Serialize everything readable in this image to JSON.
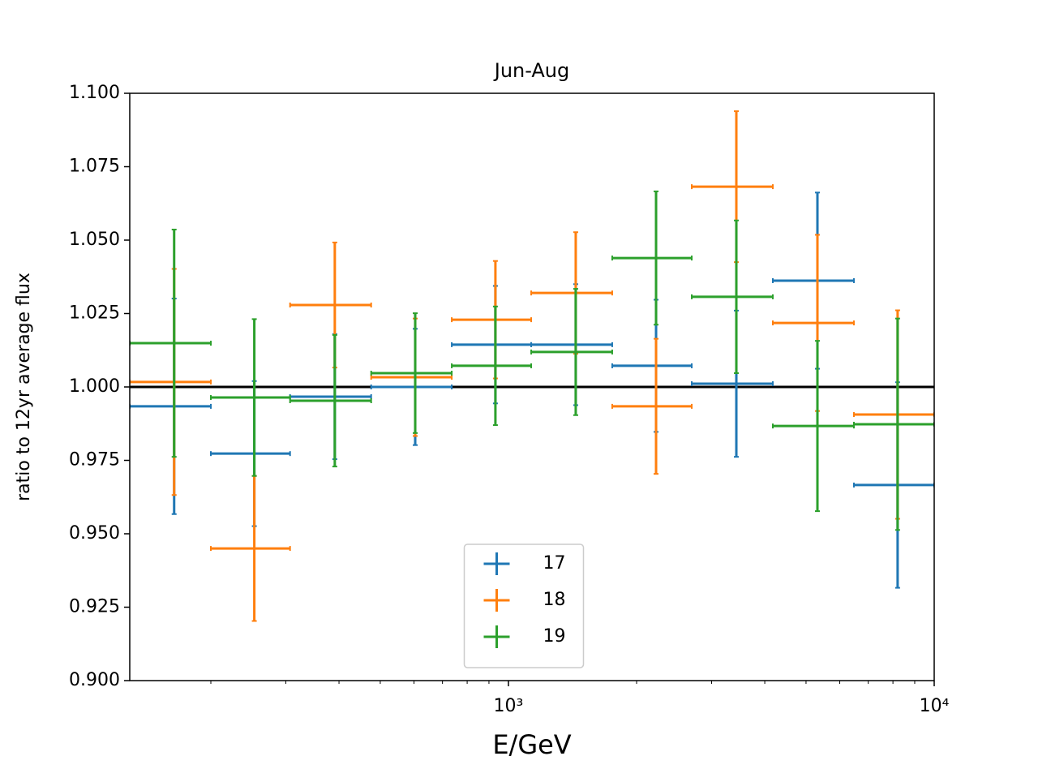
{
  "chart_data": {
    "type": "errorbar",
    "title": "Jun-Aug",
    "x_label": "E/GeV",
    "y_label": "ratio to 12yr average flux",
    "x_scale": "log",
    "xlim": [
      129,
      10000
    ],
    "ylim": [
      0.9,
      1.1
    ],
    "xticks": [
      {
        "value": 1000,
        "label": "10³"
      },
      {
        "value": 10000,
        "label": "10⁴"
      }
    ],
    "yticks": [
      {
        "value": 0.9,
        "label": "0.900"
      },
      {
        "value": 0.925,
        "label": "0.925"
      },
      {
        "value": 0.95,
        "label": "0.950"
      },
      {
        "value": 0.975,
        "label": "0.975"
      },
      {
        "value": 1.0,
        "label": "1.000"
      },
      {
        "value": 1.025,
        "label": "1.025"
      },
      {
        "value": 1.05,
        "label": "1.050"
      },
      {
        "value": 1.075,
        "label": "1.075"
      },
      {
        "value": 1.1,
        "label": "1.100"
      }
    ],
    "hline": 1.0,
    "legend": "lower center",
    "x": [
      164,
      253,
      391,
      604,
      932,
      1439,
      2222,
      3430,
      5318,
      8205
    ],
    "x_edges": [
      129,
      200,
      307,
      476,
      736,
      1131,
      1753,
      2695,
      4178,
      6478,
      10000
    ],
    "series": [
      {
        "name": "17",
        "color": "#1f77b4",
        "values": [
          0.9934,
          0.9773,
          0.9967,
          1.0,
          1.0144,
          1.0144,
          1.0072,
          1.0011,
          1.0362,
          0.9666
        ],
        "yerr": [
          0.0367,
          0.0247,
          0.0213,
          0.0198,
          0.02,
          0.0206,
          0.0225,
          0.0249,
          0.03,
          0.035
        ]
      },
      {
        "name": "18",
        "color": "#ff7f0e",
        "values": [
          1.0017,
          0.945,
          1.0279,
          1.0033,
          1.0229,
          1.032,
          0.9934,
          1.0682,
          1.0218,
          0.9906
        ],
        "yerr": [
          0.0385,
          0.0247,
          0.0213,
          0.02,
          0.02,
          0.0207,
          0.023,
          0.0257,
          0.03,
          0.0355
        ]
      },
      {
        "name": "19",
        "color": "#2ca02c",
        "values": [
          1.0149,
          0.9964,
          0.9953,
          1.0047,
          1.0072,
          1.0119,
          1.0439,
          1.0307,
          0.9867,
          0.9873
        ],
        "yerr": [
          0.0387,
          0.0267,
          0.0224,
          0.0204,
          0.0202,
          0.0215,
          0.0227,
          0.026,
          0.029,
          0.036
        ]
      }
    ]
  }
}
